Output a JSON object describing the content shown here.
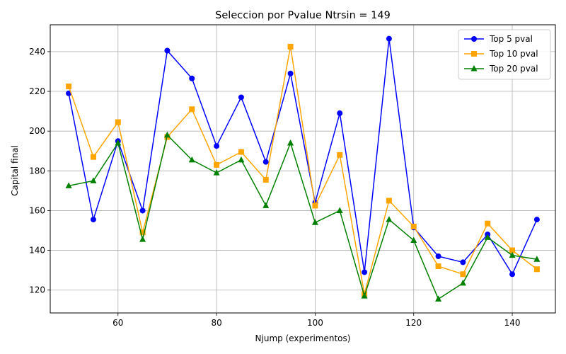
{
  "chart_data": {
    "type": "line",
    "title": "Seleccion por Pvalue Ntrsin = 149",
    "xlabel": "Njump (experimentos)",
    "ylabel": "Capital final",
    "xlim": [
      46.25,
      148.75
    ],
    "ylim": [
      108.5,
      253.5
    ],
    "xticks": [
      60,
      80,
      100,
      120,
      140
    ],
    "yticks": [
      120,
      140,
      160,
      180,
      200,
      220,
      240
    ],
    "grid": true,
    "legend_position": "top-right",
    "x": [
      50,
      55,
      60,
      65,
      70,
      75,
      80,
      85,
      90,
      95,
      100,
      105,
      110,
      115,
      120,
      125,
      130,
      135,
      140,
      145
    ],
    "series": [
      {
        "name": "Top 5 pval",
        "color": "#0000ff",
        "marker": "circle",
        "values": [
          219,
          155.5,
          195,
          160,
          240.5,
          226.5,
          192.5,
          217,
          184.5,
          229,
          164,
          209,
          129,
          246.5,
          151.5,
          137,
          134,
          148,
          128,
          155.5
        ]
      },
      {
        "name": "Top 10 pval",
        "color": "#ffa500",
        "marker": "square",
        "values": [
          222.5,
          187,
          204.5,
          149,
          197,
          211,
          183,
          189.5,
          175.5,
          242.5,
          162.5,
          188,
          118,
          165,
          152,
          132,
          128,
          153.5,
          140,
          130.5
        ]
      },
      {
        "name": "Top 20 pval",
        "color": "#008000",
        "marker": "triangle",
        "values": [
          172.5,
          175,
          194,
          145.5,
          198,
          185.5,
          179,
          185.5,
          162.5,
          194,
          154,
          160,
          117,
          155.5,
          145,
          115.5,
          123.5,
          146.5,
          137.5,
          135.5
        ]
      }
    ]
  }
}
